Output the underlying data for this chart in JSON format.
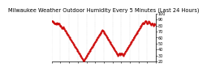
{
  "title": "Milwaukee Weather Outdoor Humidity Every 5 Minutes (Last 24 Hours)",
  "background_color": "#ffffff",
  "line_color": "#cc0000",
  "grid_color": "#bbbbbb",
  "ylim": [
    20,
    100
  ],
  "xlim": [
    0,
    287
  ],
  "yticks": [
    20,
    30,
    40,
    50,
    60,
    70,
    80,
    90,
    100
  ],
  "humidity_data": [
    88,
    87,
    87,
    86,
    86,
    85,
    85,
    84,
    84,
    83,
    83,
    82,
    83,
    84,
    85,
    84,
    83,
    82,
    83,
    84,
    83,
    82,
    81,
    80,
    80,
    79,
    78,
    77,
    76,
    76,
    77,
    78,
    77,
    76,
    75,
    74,
    73,
    72,
    71,
    70,
    69,
    68,
    67,
    66,
    65,
    64,
    63,
    62,
    61,
    60,
    59,
    58,
    57,
    56,
    55,
    54,
    53,
    52,
    51,
    50,
    49,
    48,
    47,
    46,
    45,
    44,
    43,
    42,
    41,
    40,
    39,
    38,
    37,
    36,
    35,
    34,
    33,
    32,
    31,
    30,
    29,
    28,
    27,
    26,
    25,
    24,
    23,
    22,
    21,
    22,
    23,
    24,
    25,
    26,
    27,
    28,
    29,
    30,
    31,
    32,
    33,
    34,
    35,
    36,
    37,
    38,
    39,
    40,
    41,
    42,
    43,
    44,
    45,
    46,
    47,
    48,
    49,
    50,
    51,
    52,
    53,
    54,
    55,
    56,
    57,
    58,
    59,
    60,
    61,
    62,
    63,
    64,
    65,
    66,
    67,
    68,
    69,
    70,
    71,
    72,
    73,
    72,
    71,
    70,
    69,
    68,
    67,
    66,
    65,
    64,
    63,
    62,
    61,
    60,
    59,
    58,
    57,
    56,
    55,
    54,
    53,
    52,
    51,
    50,
    49,
    48,
    47,
    46,
    45,
    44,
    43,
    42,
    41,
    40,
    39,
    38,
    37,
    36,
    35,
    34,
    33,
    32,
    31,
    30,
    31,
    32,
    33,
    34,
    33,
    32,
    31,
    32,
    33,
    34,
    33,
    32,
    31,
    30,
    31,
    32,
    33,
    34,
    35,
    36,
    37,
    38,
    39,
    40,
    41,
    42,
    43,
    44,
    45,
    46,
    47,
    48,
    49,
    50,
    51,
    52,
    53,
    54,
    55,
    56,
    57,
    58,
    59,
    60,
    61,
    62,
    63,
    64,
    65,
    66,
    67,
    68,
    69,
    70,
    71,
    72,
    73,
    74,
    75,
    76,
    77,
    78,
    79,
    80,
    81,
    82,
    83,
    84,
    85,
    84,
    83,
    84,
    85,
    86,
    87,
    88,
    87,
    86,
    85,
    84,
    83,
    84,
    85,
    86,
    87,
    86,
    85,
    84,
    83,
    82,
    81,
    82,
    83,
    84,
    83,
    82,
    81,
    80,
    81,
    82,
    83,
    82
  ],
  "xtick_positions": [
    0,
    24,
    48,
    72,
    96,
    120,
    144,
    168,
    192,
    216,
    240,
    264,
    287
  ],
  "title_fontsize": 4.8,
  "tick_fontsize": 3.5,
  "line_width": 0.5,
  "marker_size": 0.9
}
